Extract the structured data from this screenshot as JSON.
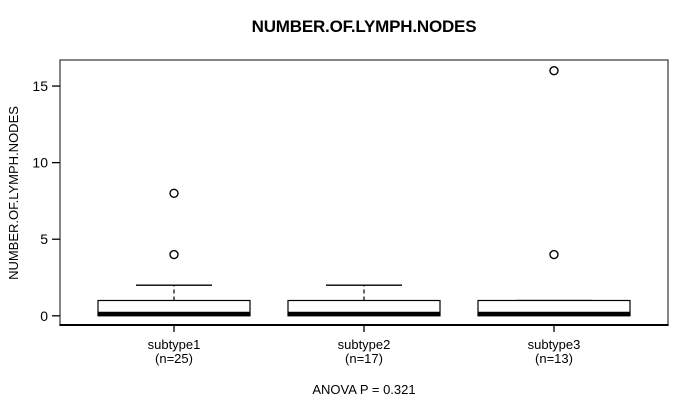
{
  "figure": {
    "title": "NUMBER.OF.LYMPH.NODES",
    "y_axis_label": "NUMBER.OF.LYMPH.NODES",
    "annotation": "ANOVA P = 0.321"
  },
  "chart_data": {
    "type": "boxplot",
    "title": "NUMBER.OF.LYMPH.NODES",
    "xlabel": "",
    "ylabel": "NUMBER.OF.LYMPH.NODES",
    "annotation": "ANOVA P = 0.321",
    "anova_p": 0.321,
    "yticks": [
      0,
      5,
      10,
      15
    ],
    "ylim": [
      -0.6,
      16.7
    ],
    "grid": false,
    "legend_position": "none",
    "groups": [
      {
        "label": "subtype1",
        "n_label": "(n=25)",
        "n": 25,
        "median": 0,
        "q1": 0,
        "q3": 1,
        "whisker_low": 0,
        "whisker_high": 2,
        "outliers": [
          4,
          8
        ]
      },
      {
        "label": "subtype2",
        "n_label": "(n=17)",
        "n": 17,
        "median": 0,
        "q1": 0,
        "q3": 1,
        "whisker_low": 0,
        "whisker_high": 2,
        "outliers": []
      },
      {
        "label": "subtype3",
        "n_label": "(n=13)",
        "n": 13,
        "median": 0,
        "q1": 0,
        "q3": 1,
        "whisker_low": 0,
        "whisker_high": 1,
        "outliers": [
          4,
          16
        ]
      }
    ],
    "colors": {
      "background": "#ffffff",
      "box_fill": "#ffffff",
      "stroke": "#000000",
      "frame": "#5e5e5e",
      "text": "#000000"
    }
  }
}
